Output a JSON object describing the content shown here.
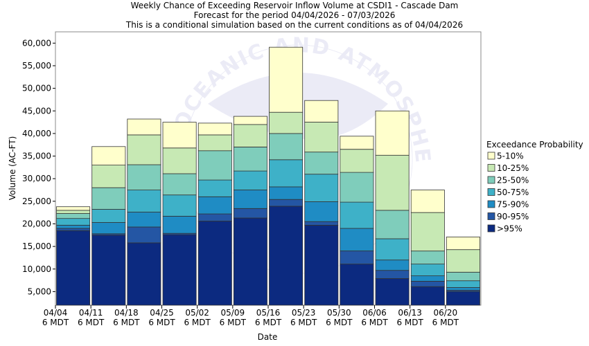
{
  "chart_data": {
    "type": "bar",
    "stacked": true,
    "title": "Weekly Chance of Exceeding Reservoir Inflow Volume at CSDI1 - Cascade Dam",
    "subtitle": "Forecast for the period 04/04/2026 - 07/03/2026",
    "subtitle2": "This is a conditional simulation based on the current conditions as of 04/04/2026",
    "xlabel": "Date",
    "ylabel": "Volume (AC-FT)",
    "ylim": [
      2000,
      62500
    ],
    "yticks": [
      5000,
      10000,
      15000,
      20000,
      25000,
      30000,
      35000,
      40000,
      45000,
      50000,
      55000,
      60000
    ],
    "ytick_labels": [
      "5,000",
      "10,000",
      "15,000",
      "20,000",
      "25,000",
      "30,000",
      "35,000",
      "40,000",
      "45,000",
      "50,000",
      "55,000",
      "60,000"
    ],
    "xtick_labels": [
      [
        "04/04",
        "6 MDT"
      ],
      [
        "04/11",
        "6 MDT"
      ],
      [
        "04/18",
        "6 MDT"
      ],
      [
        "04/25",
        "6 MDT"
      ],
      [
        "05/02",
        "6 MDT"
      ],
      [
        "05/09",
        "6 MDT"
      ],
      [
        "05/16",
        "6 MDT"
      ],
      [
        "05/23",
        "6 MDT"
      ],
      [
        "05/30",
        "6 MDT"
      ],
      [
        "06/06",
        "6 MDT"
      ],
      [
        "06/13",
        "6 MDT"
      ],
      [
        "06/20",
        "6 MDT"
      ]
    ],
    "legend_title": "Exceedance Probability",
    "legend_position": "right",
    "grid": false,
    "bars": [
      {
        "levels": [
          18500,
          19000,
          19700,
          21200,
          22300,
          23000,
          23800
        ]
      },
      {
        "levels": [
          17500,
          17800,
          20300,
          23200,
          28000,
          33000,
          37100
        ]
      },
      {
        "levels": [
          15800,
          19300,
          22600,
          27500,
          33100,
          39700,
          43200
        ]
      },
      {
        "levels": [
          17600,
          17900,
          21700,
          26400,
          31100,
          36800,
          42500
        ]
      },
      {
        "levels": [
          20600,
          22200,
          26000,
          29700,
          36200,
          39700,
          42300
        ]
      },
      {
        "levels": [
          21300,
          23400,
          27500,
          31700,
          37000,
          42000,
          43800
        ]
      },
      {
        "levels": [
          23900,
          25400,
          28200,
          34200,
          40000,
          44700,
          59100
        ]
      },
      {
        "levels": [
          19700,
          20500,
          24900,
          31000,
          35900,
          42500,
          47300
        ]
      },
      {
        "levels": [
          11100,
          14000,
          19000,
          24800,
          31400,
          36500,
          39400
        ]
      },
      {
        "levels": [
          7900,
          9700,
          12000,
          16700,
          23000,
          35200,
          45000
        ]
      },
      {
        "levels": [
          6100,
          7300,
          8500,
          11100,
          14000,
          22500,
          27500
        ]
      },
      {
        "levels": [
          5000,
          5300,
          5900,
          7400,
          9300,
          14300,
          17100
        ]
      }
    ],
    "series": [
      {
        "name": ">95%",
        "color": "#0c2a80"
      },
      {
        "name": "90-95%",
        "color": "#2456a4"
      },
      {
        "name": "75-90%",
        "color": "#1f8cc4"
      },
      {
        "name": "50-75%",
        "color": "#3eb1c8"
      },
      {
        "name": "25-50%",
        "color": "#7fcdbb"
      },
      {
        "name": "10-25%",
        "color": "#c7e9b4"
      },
      {
        "name": "5-10%",
        "color": "#ffffcc"
      }
    ],
    "watermark_text": "OCEANIC AND ATMOSPHERIC ADMINISTRATION"
  }
}
